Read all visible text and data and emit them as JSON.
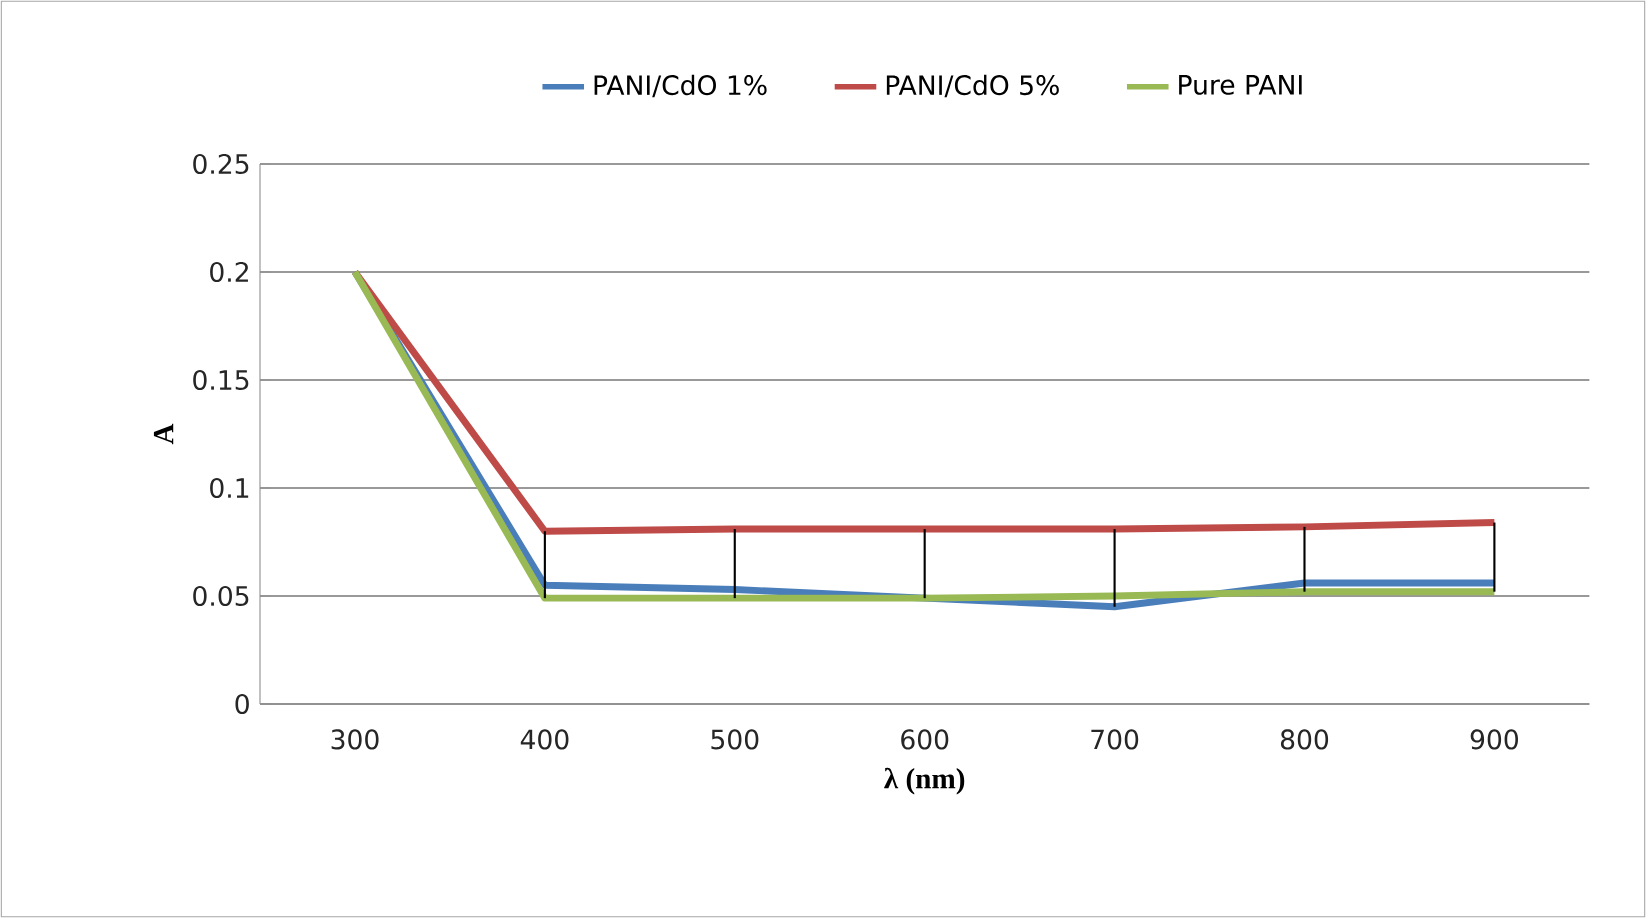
{
  "chart_data": {
    "type": "line",
    "xlabel": "λ (nm)",
    "ylabel": "A",
    "categories": [
      "300",
      "400",
      "500",
      "600",
      "700",
      "800",
      "900"
    ],
    "series": [
      {
        "name": "PANI/CdO 1%",
        "color": "#4a7ebb",
        "values": [
          0.2,
          0.055,
          0.053,
          0.049,
          0.045,
          0.056,
          0.056
        ]
      },
      {
        "name": "PANI/CdO 5%",
        "color": "#be4b48",
        "values": [
          0.2,
          0.08,
          0.081,
          0.081,
          0.081,
          0.082,
          0.084
        ],
        "errors": [
          null,
          [
            0.049,
            0.08
          ],
          [
            0.049,
            0.081
          ],
          [
            0.049,
            0.081
          ],
          [
            0.045,
            0.081
          ],
          [
            0.052,
            0.082
          ],
          [
            0.052,
            0.084
          ]
        ]
      },
      {
        "name": "Pure PANI",
        "color": "#98b954",
        "values": [
          0.2,
          0.049,
          0.049,
          0.049,
          0.05,
          0.052,
          0.052
        ]
      }
    ],
    "ylim": [
      0,
      0.25
    ],
    "yticks": [
      0,
      0.05,
      0.1,
      0.15,
      0.2,
      0.25
    ],
    "grid": "y",
    "legend": "top",
    "marker": "none",
    "line_style": "solid"
  }
}
